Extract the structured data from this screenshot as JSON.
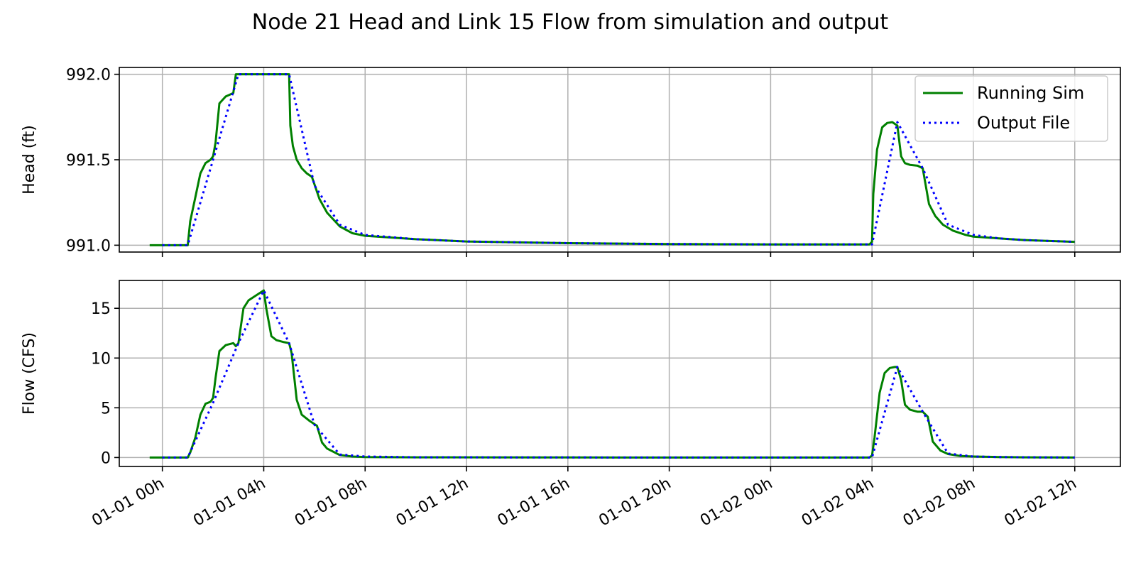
{
  "figure": {
    "title": "Node 21 Head and Link 15 Flow from simulation and output"
  },
  "legend": {
    "placement": "top-right of upper panel",
    "entries": [
      {
        "label": "Running Sim",
        "color": "#008000",
        "style": "solid"
      },
      {
        "label": "Output File",
        "color": "#0000ff",
        "style": "dotted"
      }
    ]
  },
  "chart_data": [
    {
      "type": "line",
      "panel": "top",
      "ylabel": "Head (ft)",
      "xlabel": "",
      "ylim": [
        990.96,
        992.04
      ],
      "yticks": [
        {
          "value": 991.0,
          "label": "991.0"
        },
        {
          "value": 991.5,
          "label": "991.5"
        },
        {
          "value": 992.0,
          "label": "992.0"
        }
      ],
      "grid": true,
      "series": [
        {
          "name": "Running Sim",
          "color": "#008000",
          "style": "solid",
          "x": [
            -0.5,
            0.0,
            1.0,
            1.1,
            1.3,
            1.5,
            1.7,
            1.9,
            2.0,
            2.1,
            2.25,
            2.5,
            2.8,
            2.9,
            3.0,
            4.0,
            5.0,
            5.05,
            5.15,
            5.3,
            5.5,
            5.7,
            5.9,
            6.2,
            6.5,
            7.0,
            7.5,
            8.0,
            10,
            12,
            16,
            20,
            24,
            27.9,
            28.0,
            28.05,
            28.2,
            28.4,
            28.6,
            28.8,
            29.0,
            29.15,
            29.3,
            29.5,
            29.8,
            30.0,
            30.25,
            30.5,
            30.8,
            31.2,
            31.7,
            32.0,
            33,
            34,
            35,
            36
          ],
          "y": [
            991.0,
            991.0,
            991.0,
            991.14,
            991.28,
            991.42,
            991.48,
            991.5,
            991.52,
            991.6,
            991.83,
            991.87,
            991.89,
            992.0,
            992.0,
            992.0,
            992.0,
            991.7,
            991.58,
            991.5,
            991.45,
            991.42,
            991.4,
            991.27,
            991.19,
            991.11,
            991.07,
            991.055,
            991.035,
            991.022,
            991.012,
            991.007,
            991.005,
            991.005,
            991.02,
            991.3,
            991.56,
            991.69,
            991.715,
            991.72,
            991.7,
            991.52,
            991.48,
            991.47,
            991.465,
            991.45,
            991.24,
            991.17,
            991.12,
            991.085,
            991.06,
            991.05,
            991.04,
            991.03,
            991.025,
            991.02
          ]
        },
        {
          "name": "Output File",
          "color": "#0000ff",
          "style": "dotted",
          "x": [
            0.0,
            1.0,
            2.0,
            3.0,
            4.0,
            5.0,
            6.0,
            7.0,
            8.0,
            10,
            12,
            16,
            20,
            24,
            28,
            29,
            30,
            31,
            32,
            33,
            34,
            35,
            36
          ],
          "y": [
            991.0,
            991.0,
            991.5,
            992.0,
            992.0,
            992.0,
            991.35,
            991.12,
            991.06,
            991.035,
            991.022,
            991.012,
            991.007,
            991.005,
            991.005,
            991.72,
            991.45,
            991.12,
            991.06,
            991.04,
            991.03,
            991.025,
            991.02
          ]
        }
      ]
    },
    {
      "type": "line",
      "panel": "bottom",
      "ylabel": "Flow (CFS)",
      "xlabel": "",
      "ylim": [
        -0.9,
        17.8
      ],
      "yticks": [
        {
          "value": 0,
          "label": "0"
        },
        {
          "value": 5,
          "label": "5"
        },
        {
          "value": 10,
          "label": "10"
        },
        {
          "value": 15,
          "label": "15"
        }
      ],
      "grid": true,
      "series": [
        {
          "name": "Running Sim",
          "color": "#008000",
          "style": "solid",
          "x": [
            -0.5,
            0.0,
            1.0,
            1.1,
            1.3,
            1.5,
            1.7,
            1.9,
            2.0,
            2.1,
            2.25,
            2.5,
            2.8,
            2.9,
            3.0,
            3.2,
            3.4,
            3.7,
            4.0,
            4.1,
            4.3,
            4.5,
            4.8,
            5.0,
            5.1,
            5.3,
            5.5,
            5.8,
            6.1,
            6.3,
            6.5,
            7.0,
            7.5,
            8.0,
            10,
            16,
            24,
            27.9,
            28.0,
            28.1,
            28.3,
            28.5,
            28.7,
            28.9,
            29.0,
            29.15,
            29.3,
            29.5,
            29.8,
            30.0,
            30.2,
            30.4,
            30.7,
            31.0,
            31.5,
            32.0,
            33,
            34,
            36
          ],
          "y": [
            0,
            0,
            0,
            0.5,
            2.0,
            4.3,
            5.4,
            5.6,
            6.0,
            8.0,
            10.7,
            11.3,
            11.5,
            11.2,
            11.5,
            15.0,
            15.8,
            16.3,
            16.8,
            15.0,
            12.2,
            11.8,
            11.6,
            11.5,
            10.5,
            5.8,
            4.3,
            3.7,
            3.2,
            1.5,
            0.9,
            0.25,
            0.1,
            0.05,
            0.02,
            0.01,
            0.0,
            0.0,
            0.2,
            2.0,
            6.5,
            8.5,
            9.0,
            9.1,
            9.1,
            7.8,
            5.3,
            4.8,
            4.6,
            4.6,
            4.1,
            1.6,
            0.7,
            0.35,
            0.15,
            0.1,
            0.05,
            0.02,
            0.0
          ]
        },
        {
          "name": "Output File",
          "color": "#0000ff",
          "style": "dotted",
          "x": [
            0.0,
            1.0,
            2.0,
            3.0,
            4.0,
            5.0,
            6.0,
            7.0,
            8.0,
            10,
            16,
            24,
            28,
            29,
            30,
            31,
            32,
            33,
            34,
            36
          ],
          "y": [
            0,
            0,
            5.5,
            11.5,
            16.8,
            11.5,
            3.3,
            0.3,
            0.1,
            0.02,
            0.01,
            0.0,
            0.0,
            9.1,
            4.6,
            0.4,
            0.1,
            0.05,
            0.02,
            0.0
          ]
        }
      ]
    }
  ],
  "shared_x_axis": {
    "type": "date",
    "xlim": [
      -1.7,
      37.8
    ],
    "ticks": [
      {
        "value": 0,
        "label": "01-01 00h"
      },
      {
        "value": 4,
        "label": "01-01 04h"
      },
      {
        "value": 8,
        "label": "01-01 08h"
      },
      {
        "value": 12,
        "label": "01-01 12h"
      },
      {
        "value": 16,
        "label": "01-01 16h"
      },
      {
        "value": 20,
        "label": "01-01 20h"
      },
      {
        "value": 24,
        "label": "01-02 00h"
      },
      {
        "value": 28,
        "label": "01-02 04h"
      },
      {
        "value": 32,
        "label": "01-02 08h"
      },
      {
        "value": 36,
        "label": "01-02 12h"
      }
    ]
  }
}
